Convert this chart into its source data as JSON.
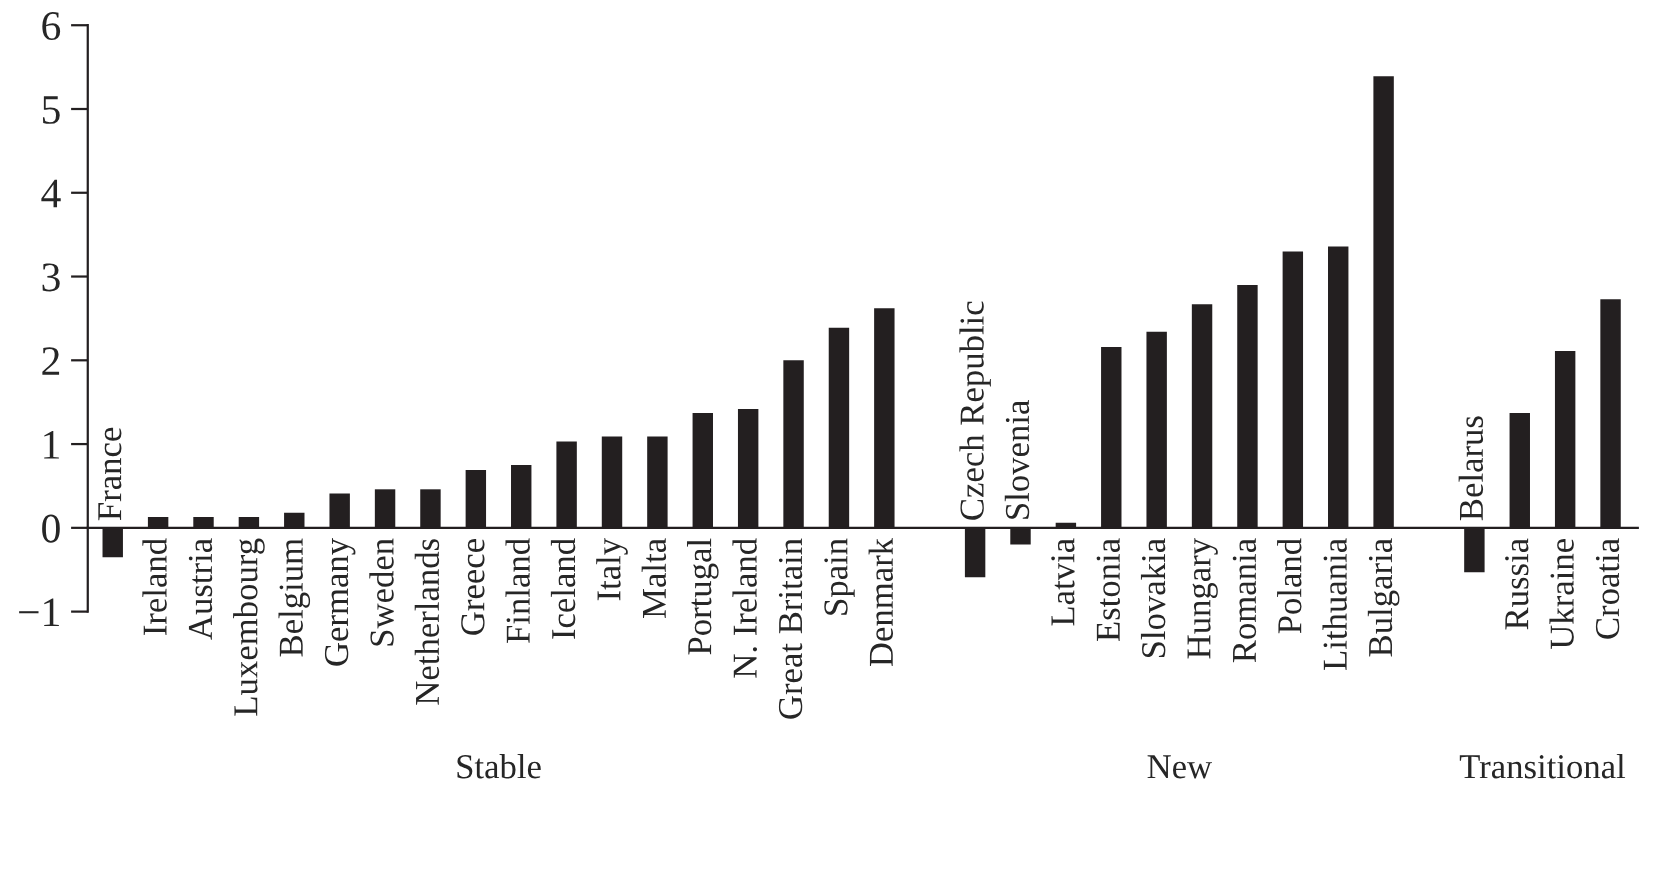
{
  "chart_data": {
    "type": "bar",
    "categories": [
      "France",
      "Ireland",
      "Austria",
      "Luxembourg",
      "Belgium",
      "Germany",
      "Sweden",
      "Netherlands",
      "Greece",
      "Finland",
      "Iceland",
      "Italy",
      "Malta",
      "Portugal",
      "N. Ireland",
      "Great Britain",
      "Spain",
      "Denmark",
      null,
      "Czech Republic",
      "Slovenia",
      "Latvia",
      "Estonia",
      "Slovakia",
      "Hungary",
      "Romania",
      "Poland",
      "Lithuania",
      "Bulgaria",
      null,
      "Belarus",
      "Russia",
      "Ukraine",
      "Croatia"
    ],
    "values": [
      -0.35,
      0.13,
      0.13,
      0.13,
      0.18,
      0.41,
      0.46,
      0.46,
      0.69,
      0.75,
      1.03,
      1.09,
      1.09,
      1.37,
      1.42,
      2.0,
      2.39,
      2.62,
      null,
      -0.59,
      -0.2,
      0.06,
      2.16,
      2.34,
      2.67,
      2.9,
      3.3,
      3.36,
      5.39,
      null,
      -0.53,
      1.37,
      2.11,
      2.73
    ],
    "color": "#231f20",
    "ylim": [
      -1,
      6
    ],
    "yticks": [
      {
        "value": -1,
        "label": "−1"
      },
      0,
      1,
      2,
      3,
      4,
      5,
      6
    ],
    "annotations": [
      "Stable",
      "New",
      "Transitional"
    ],
    "grid": false,
    "legend": false
  }
}
